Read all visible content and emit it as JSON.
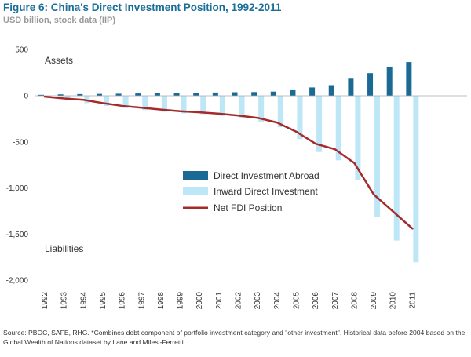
{
  "chart_data": {
    "type": "bar",
    "title": "Figure 6: China's Direct Investment Position, 1992-2011",
    "subtitle": "USD billion, stock data (IIP)",
    "categories": [
      "1992",
      "1993",
      "1994",
      "1995",
      "1996",
      "1997",
      "1998",
      "1999",
      "2000",
      "2001",
      "2002",
      "2003",
      "2004",
      "2005",
      "2006",
      "2007",
      "2008",
      "2009",
      "2010",
      "2011"
    ],
    "series": [
      {
        "name": "Direct Investment Abroad",
        "type": "bar",
        "color": "#1b6a96",
        "values": [
          10,
          15,
          18,
          20,
          22,
          25,
          27,
          29,
          28,
          35,
          38,
          40,
          45,
          60,
          90,
          115,
          185,
          245,
          315,
          365
        ]
      },
      {
        "name": "Inward Direct Investment",
        "type": "bar",
        "color": "#bde6f7",
        "values": [
          -20,
          -50,
          -80,
          -110,
          -135,
          -155,
          -175,
          -190,
          -200,
          -220,
          -245,
          -285,
          -340,
          -470,
          -610,
          -700,
          -915,
          -1315,
          -1570,
          -1805
        ]
      },
      {
        "name": "Net FDI Position",
        "type": "line",
        "color": "#a52a2a",
        "values": [
          -10,
          -30,
          -45,
          -80,
          -110,
          -130,
          -150,
          -168,
          -180,
          -195,
          -215,
          -240,
          -290,
          -390,
          -520,
          -580,
          -730,
          -1070,
          -1255,
          -1440
        ]
      }
    ],
    "yticks": [
      500,
      0,
      -500,
      -1000,
      -1500,
      -2000
    ],
    "ytick_labels": [
      "500",
      "0",
      "-500",
      "-1,000",
      "-1,500",
      "-2,000"
    ],
    "ylim": [
      -2000,
      500
    ],
    "annotations": {
      "top": "Assets",
      "bottom": "Liabilities"
    },
    "legend": "center-right"
  },
  "source": "Source: PBOC, SAFE, RHG. *Combines debt component of portfolio investment category and \"other investment\". Historical data before 2004 based on the Global Wealth of Nations dataset by Lane and Milesi-Ferretti."
}
